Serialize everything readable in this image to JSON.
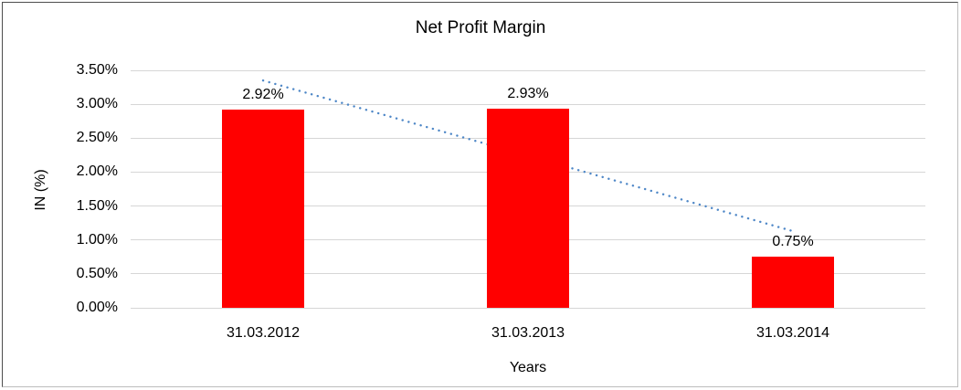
{
  "frame": {
    "background": "#ffffff",
    "border_dark": "#4d4d4d",
    "border_light": "#bdbdbd"
  },
  "chart_data": {
    "type": "bar",
    "title": "Net Profit Margin",
    "categories": [
      "31.03.2012",
      "31.03.2013",
      "31.03.2014"
    ],
    "values": [
      2.92,
      2.93,
      0.75
    ],
    "value_labels": [
      "2.92%",
      "2.93%",
      "0.75%"
    ],
    "xlabel": "Years",
    "ylabel": "IN (%)",
    "ylim": [
      0,
      3.5
    ],
    "ytick_step": 0.5,
    "ytick_labels": [
      "0.00%",
      "0.50%",
      "1.00%",
      "1.50%",
      "2.00%",
      "2.50%",
      "3.00%",
      "3.50%"
    ],
    "grid": true,
    "legend": "none",
    "bar_color": "#ff0000",
    "gridline_color": "#d6d6d6",
    "text_color": "#000000",
    "trendline": {
      "type": "linear",
      "style": "dotted",
      "color": "#4e87c7",
      "start_value": 3.35,
      "end_value": 1.13,
      "spans_categories": [
        0,
        2
      ],
      "behind_bars": true
    }
  }
}
